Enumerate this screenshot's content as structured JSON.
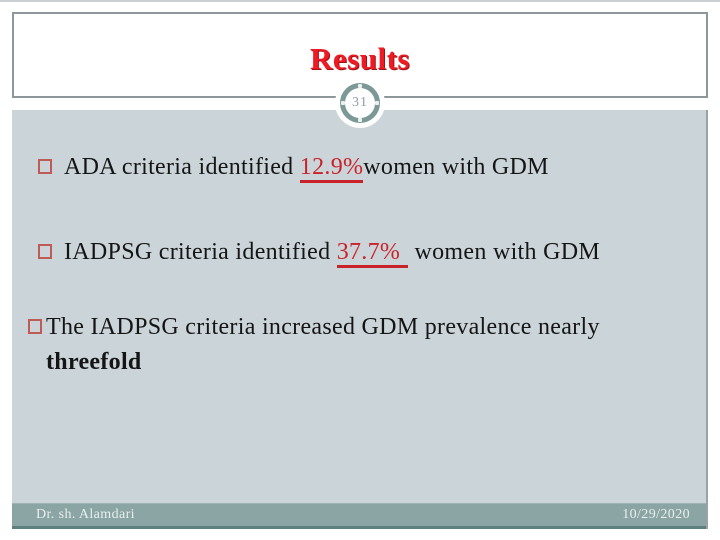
{
  "slide": {
    "title": "Results",
    "page_number": "31",
    "bullets": [
      {
        "prefix": "ADA criteria identified ",
        "stat": "12.9%",
        "suffix": "women with GDM"
      },
      {
        "prefix": "IADPSG criteria identified ",
        "stat": "37.7%",
        "suffix": " women with GDM"
      },
      {
        "prefix": "The IADPSG criteria increased GDM prevalence nearly ",
        "emphasis": "threefold"
      }
    ],
    "footer": {
      "author": "Dr. sh. Alamdari",
      "date": "10/29/2020"
    },
    "colors": {
      "title_red": "#ee1b24",
      "stat_red": "#c9232a",
      "bullet_square": "#bf5b57",
      "content_background": "#cbd4d8",
      "footer_background": "#8aa5a3",
      "circle_ring": "#7d9997",
      "border_gray": "#8e989c",
      "body_text": "#151515"
    }
  }
}
